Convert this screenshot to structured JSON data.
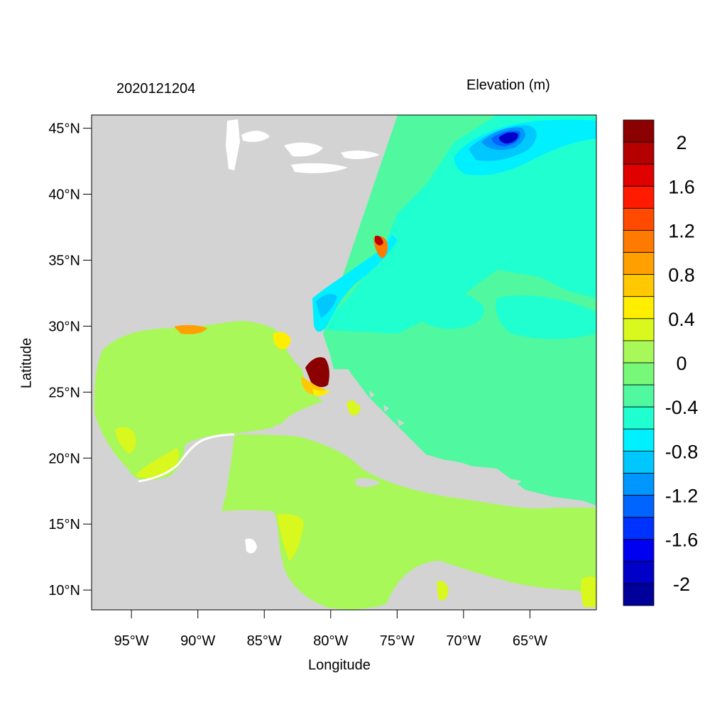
{
  "titles": {
    "left": "2020121204",
    "right": "Elevation (m)"
  },
  "axes": {
    "xlabel": "Longitude",
    "ylabel": "Latitude",
    "lon_range": [
      -98,
      -60
    ],
    "lat_range": [
      8.5,
      46
    ],
    "lat_ticks": [
      {
        "value": 45,
        "label": "45°N"
      },
      {
        "value": 40,
        "label": "40°N"
      },
      {
        "value": 35,
        "label": "35°N"
      },
      {
        "value": 30,
        "label": "30°N"
      },
      {
        "value": 25,
        "label": "25°N"
      },
      {
        "value": 20,
        "label": "20°N"
      },
      {
        "value": 15,
        "label": "15°N"
      },
      {
        "value": 10,
        "label": "10°N"
      }
    ],
    "lon_ticks": [
      {
        "value": -95,
        "label": "95°W"
      },
      {
        "value": -90,
        "label": "90°W"
      },
      {
        "value": -85,
        "label": "85°W"
      },
      {
        "value": -80,
        "label": "80°W"
      },
      {
        "value": -75,
        "label": "75°W"
      },
      {
        "value": -70,
        "label": "70°W"
      },
      {
        "value": -65,
        "label": "65°W"
      }
    ]
  },
  "colorbar": {
    "colors": [
      "#8b0000",
      "#b50000",
      "#e00000",
      "#ff1a00",
      "#ff4a00",
      "#ff7a00",
      "#ffa000",
      "#ffc800",
      "#ffee00",
      "#d8f81e",
      "#a8f85a",
      "#78f878",
      "#50f8a0",
      "#20ffd0",
      "#00f0ff",
      "#00c8ff",
      "#0096ff",
      "#0064ff",
      "#0032ff",
      "#0000f0",
      "#0000c8",
      "#00009a"
    ],
    "labels": [
      "2",
      "1.6",
      "1.2",
      "0.8",
      "0.4",
      "0",
      "-0.4",
      "-0.8",
      "-1.2",
      "-1.6",
      "-2"
    ]
  },
  "map": {
    "land_color": "#d3d3d3",
    "gulf_color": "#a8f85a",
    "atlantic_color": "#50f8a0",
    "north_atlantic_color": "#20ffd0"
  }
}
